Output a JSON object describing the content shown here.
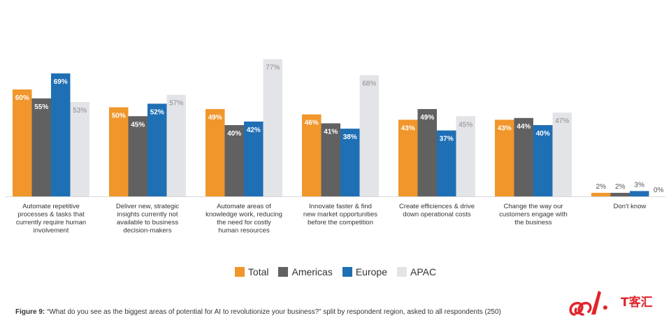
{
  "chart_data": {
    "type": "bar",
    "categories": [
      [
        "Automate repetitive",
        "processes & tasks that",
        "currently require human",
        "involvement"
      ],
      [
        "Deliver new, strategic",
        "insights currently not",
        "available to business",
        "decision-makers"
      ],
      [
        "Automate areas of",
        "knowledge work, reducing",
        "the need for costly",
        "human resources"
      ],
      [
        "Innovate faster & find",
        "new market opportunities",
        "before the competition"
      ],
      [
        "Create efficiences & drive",
        "down operational costs"
      ],
      [
        "Change the way our",
        "customers engage with",
        "the business"
      ],
      [
        "Don't know"
      ]
    ],
    "series": [
      {
        "name": "Total",
        "values": [
          60,
          50,
          49,
          46,
          43,
          43,
          2
        ],
        "color": "#F0962B"
      },
      {
        "name": "Americas",
        "values": [
          55,
          45,
          40,
          41,
          49,
          44,
          2
        ],
        "color": "#616161"
      },
      {
        "name": "Europe",
        "values": [
          69,
          52,
          42,
          38,
          37,
          40,
          3
        ],
        "color": "#1F6FB5"
      },
      {
        "name": "APAC",
        "values": [
          53,
          57,
          77,
          68,
          45,
          47,
          0
        ],
        "color": "#E3E4E8"
      }
    ],
    "value_suffix": "%",
    "ylim": [
      0,
      80
    ],
    "legend_position": "bottom-center",
    "grid": false
  },
  "caption": {
    "figure_label": "Figure 9:",
    "text": "“What do you see as the biggest areas of potential for AI to revolutionize your business?” split by respondent region, asked to all respondents (250)"
  },
  "watermark": {
    "text": "T客汇",
    "color": "#E0242B"
  }
}
